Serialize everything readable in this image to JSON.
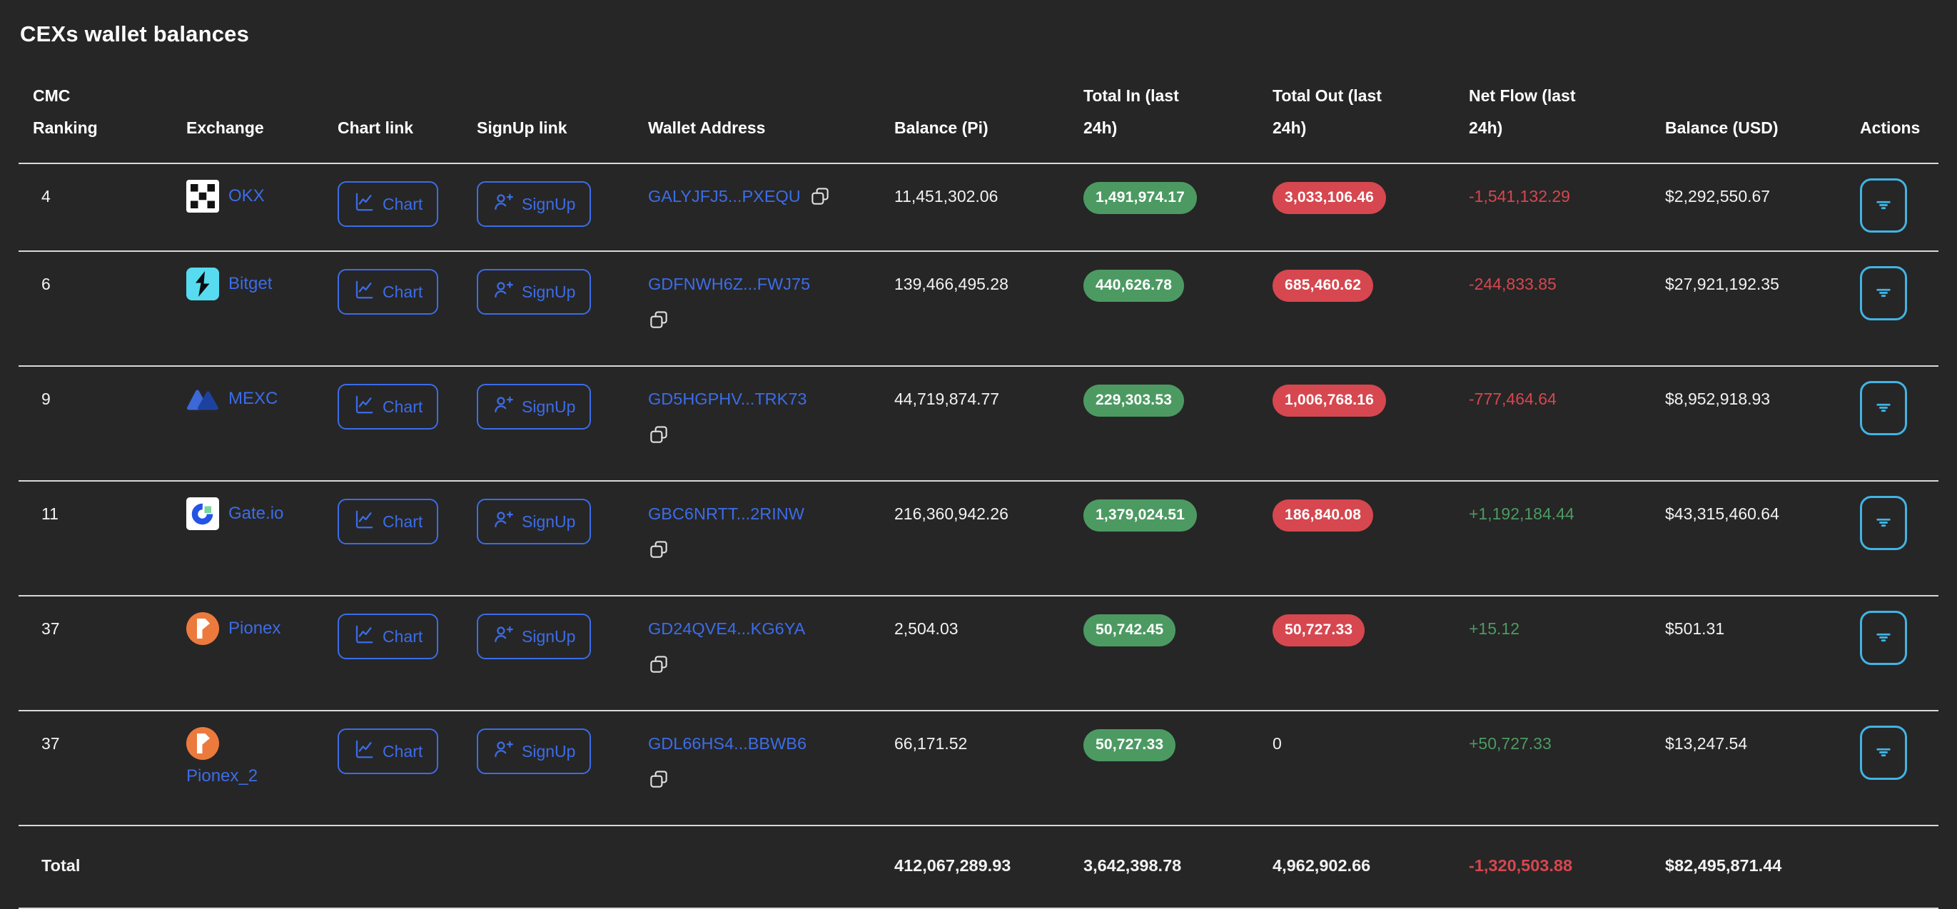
{
  "title": "CEXs wallet balances",
  "colors": {
    "background": "#262626",
    "divider": "#d9d9d9",
    "link_blue": "#3c6ce8",
    "inflow_green": "#4c9a62",
    "outflow_red": "#d6474f",
    "actions_cyan": "#41b4e4",
    "text": "#f2f2f2"
  },
  "table": {
    "columns": [
      "CMC\nRanking",
      "Exchange",
      "Chart link",
      "SignUp link",
      "Wallet Address",
      "Balance (Pi)",
      "Total In (last\n24h)",
      "Total Out (last\n24h)",
      "Net Flow (last\n24h)",
      "Balance (USD)",
      "Actions"
    ],
    "rows": [
      {
        "cmc_ranking": "4",
        "exchange": "OKX",
        "exchange_icon": "okx-logo",
        "chart_button": "Chart",
        "signup_button": "SignUp",
        "wallet_address": "GALYJFJ5...PXEQU",
        "copy_icon_inline": true,
        "name_below_icon": false,
        "balance_pi": "11,451,302.06",
        "total_in_badge": "1,491,974.17",
        "total_out_badge": "3,033,106.46",
        "total_out_text": null,
        "net_flow": "-1,541,132.29",
        "balance_usd": "$2,292,550.67"
      },
      {
        "cmc_ranking": "6",
        "exchange": "Bitget",
        "exchange_icon": "bitget-logo",
        "chart_button": "Chart",
        "signup_button": "SignUp",
        "wallet_address": "GDFNWH6Z...FWJ75",
        "copy_icon_inline": false,
        "name_below_icon": false,
        "balance_pi": "139,466,495.28",
        "total_in_badge": "440,626.78",
        "total_out_badge": "685,460.62",
        "total_out_text": null,
        "net_flow": "-244,833.85",
        "balance_usd": "$27,921,192.35"
      },
      {
        "cmc_ranking": "9",
        "exchange": "MEXC",
        "exchange_icon": "mexc-logo",
        "chart_button": "Chart",
        "signup_button": "SignUp",
        "wallet_address": "GD5HGPHV...TRK73",
        "copy_icon_inline": false,
        "name_below_icon": false,
        "balance_pi": "44,719,874.77",
        "total_in_badge": "229,303.53",
        "total_out_badge": "1,006,768.16",
        "total_out_text": null,
        "net_flow": "-777,464.64",
        "balance_usd": "$8,952,918.93"
      },
      {
        "cmc_ranking": "11",
        "exchange": "Gate.io",
        "exchange_icon": "gateio-logo",
        "chart_button": "Chart",
        "signup_button": "SignUp",
        "wallet_address": "GBC6NRTT...2RINW",
        "copy_icon_inline": false,
        "name_below_icon": false,
        "balance_pi": "216,360,942.26",
        "total_in_badge": "1,379,024.51",
        "total_out_badge": "186,840.08",
        "total_out_text": null,
        "net_flow": "+1,192,184.44",
        "balance_usd": "$43,315,460.64"
      },
      {
        "cmc_ranking": "37",
        "exchange": "Pionex",
        "exchange_icon": "pionex-logo",
        "chart_button": "Chart",
        "signup_button": "SignUp",
        "wallet_address": "GD24QVE4...KG6YA",
        "copy_icon_inline": false,
        "name_below_icon": false,
        "balance_pi": "2,504.03",
        "total_in_badge": "50,742.45",
        "total_out_badge": "50,727.33",
        "total_out_text": null,
        "net_flow": "+15.12",
        "balance_usd": "$501.31"
      },
      {
        "cmc_ranking": "37",
        "exchange": "Pionex_2",
        "exchange_icon": "pionex-logo",
        "chart_button": "Chart",
        "signup_button": "SignUp",
        "wallet_address": "GDL66HS4...BBWB6",
        "copy_icon_inline": false,
        "name_below_icon": true,
        "balance_pi": "66,171.52",
        "total_in_badge": "50,727.33",
        "total_out_badge": null,
        "total_out_text": "0",
        "net_flow": "+50,727.33",
        "balance_usd": "$13,247.54"
      }
    ],
    "total": {
      "label": "Total",
      "balance_pi": "412,067,289.93",
      "total_in": "3,642,398.78",
      "total_out": "4,962,902.66",
      "net_flow": "-1,320,503.88",
      "balance_usd": "$82,495,871.44"
    }
  }
}
